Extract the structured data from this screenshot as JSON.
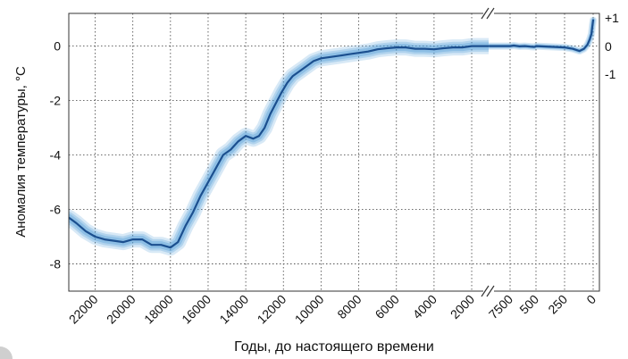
{
  "chart_data": {
    "type": "line",
    "xlabel": "Годы, до настоящего времени",
    "ylabel": "Аномалия температуры, °C",
    "left_panel": {
      "x_ticks": [
        22000,
        20000,
        18000,
        16000,
        14000,
        12000,
        10000,
        8000,
        6000,
        4000,
        2000
      ],
      "xlim": [
        23400,
        1100
      ],
      "y_ticks": [
        0,
        -2,
        -4,
        -6,
        -8
      ],
      "ylim": [
        -9,
        1.2
      ],
      "grid": true
    },
    "right_panel": {
      "x_ticks": [
        "7500",
        "500",
        "250",
        "0"
      ],
      "y_ticks": [
        "+1",
        "0",
        "-1"
      ],
      "grid": true
    },
    "series_left": {
      "x": [
        23400,
        23000,
        22500,
        22000,
        21500,
        21000,
        20500,
        20000,
        19500,
        19000,
        18500,
        18000,
        17600,
        17200,
        16800,
        16400,
        16000,
        15600,
        15200,
        14800,
        14400,
        14000,
        13600,
        13300,
        13000,
        12700,
        12400,
        12100,
        11800,
        11500,
        11200,
        10800,
        10400,
        10000,
        9500,
        9000,
        8500,
        8000,
        7500,
        7000,
        6500,
        6000,
        5500,
        5000,
        4500,
        4000,
        3500,
        3000,
        2500,
        2000,
        1500,
        1100
      ],
      "y": [
        -6.3,
        -6.5,
        -6.8,
        -7.0,
        -7.1,
        -7.15,
        -7.2,
        -7.1,
        -7.1,
        -7.3,
        -7.3,
        -7.4,
        -7.2,
        -6.6,
        -6.1,
        -5.5,
        -5.0,
        -4.5,
        -4.0,
        -3.8,
        -3.5,
        -3.3,
        -3.4,
        -3.3,
        -3.0,
        -2.5,
        -2.1,
        -1.7,
        -1.35,
        -1.1,
        -0.95,
        -0.75,
        -0.55,
        -0.45,
        -0.4,
        -0.35,
        -0.3,
        -0.25,
        -0.2,
        -0.12,
        -0.08,
        -0.05,
        -0.05,
        -0.1,
        -0.1,
        -0.12,
        -0.08,
        -0.05,
        -0.05,
        0.0,
        0.0,
        0.0
      ]
    },
    "series_right": {
      "x": [
        8000,
        7500,
        6500,
        5000,
        3500,
        2000,
        1000,
        700,
        500,
        350,
        250,
        180,
        120,
        80,
        50,
        30,
        15,
        8,
        0
      ],
      "y": [
        0.0,
        0.0,
        0.02,
        -0.01,
        0.0,
        -0.02,
        -0.03,
        -0.02,
        0.0,
        -0.03,
        -0.05,
        -0.1,
        -0.18,
        -0.1,
        0.05,
        0.25,
        0.45,
        0.7,
        0.95
      ]
    }
  }
}
